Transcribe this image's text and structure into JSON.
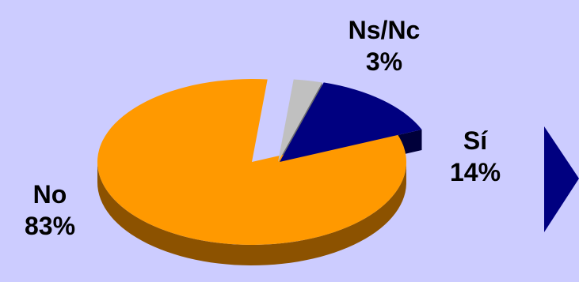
{
  "chart_data": {
    "type": "pie",
    "title": "",
    "slices": [
      {
        "label": "No",
        "value": 83,
        "value_label": "83%",
        "color": "#ff9900",
        "side_color": "#8c5200"
      },
      {
        "label": "Ns/Nc",
        "value": 3,
        "value_label": "3%",
        "color": "#c0c0c0",
        "side_color": "#6e6e6e"
      },
      {
        "label": "Sí",
        "value": 14,
        "value_label": "14%",
        "color": "#000080",
        "side_color": "#00003a"
      }
    ],
    "exploded": [
      "Ns/Nc",
      "Sí"
    ],
    "style": "3d"
  },
  "decor": {
    "arrow_color": "#000080"
  }
}
